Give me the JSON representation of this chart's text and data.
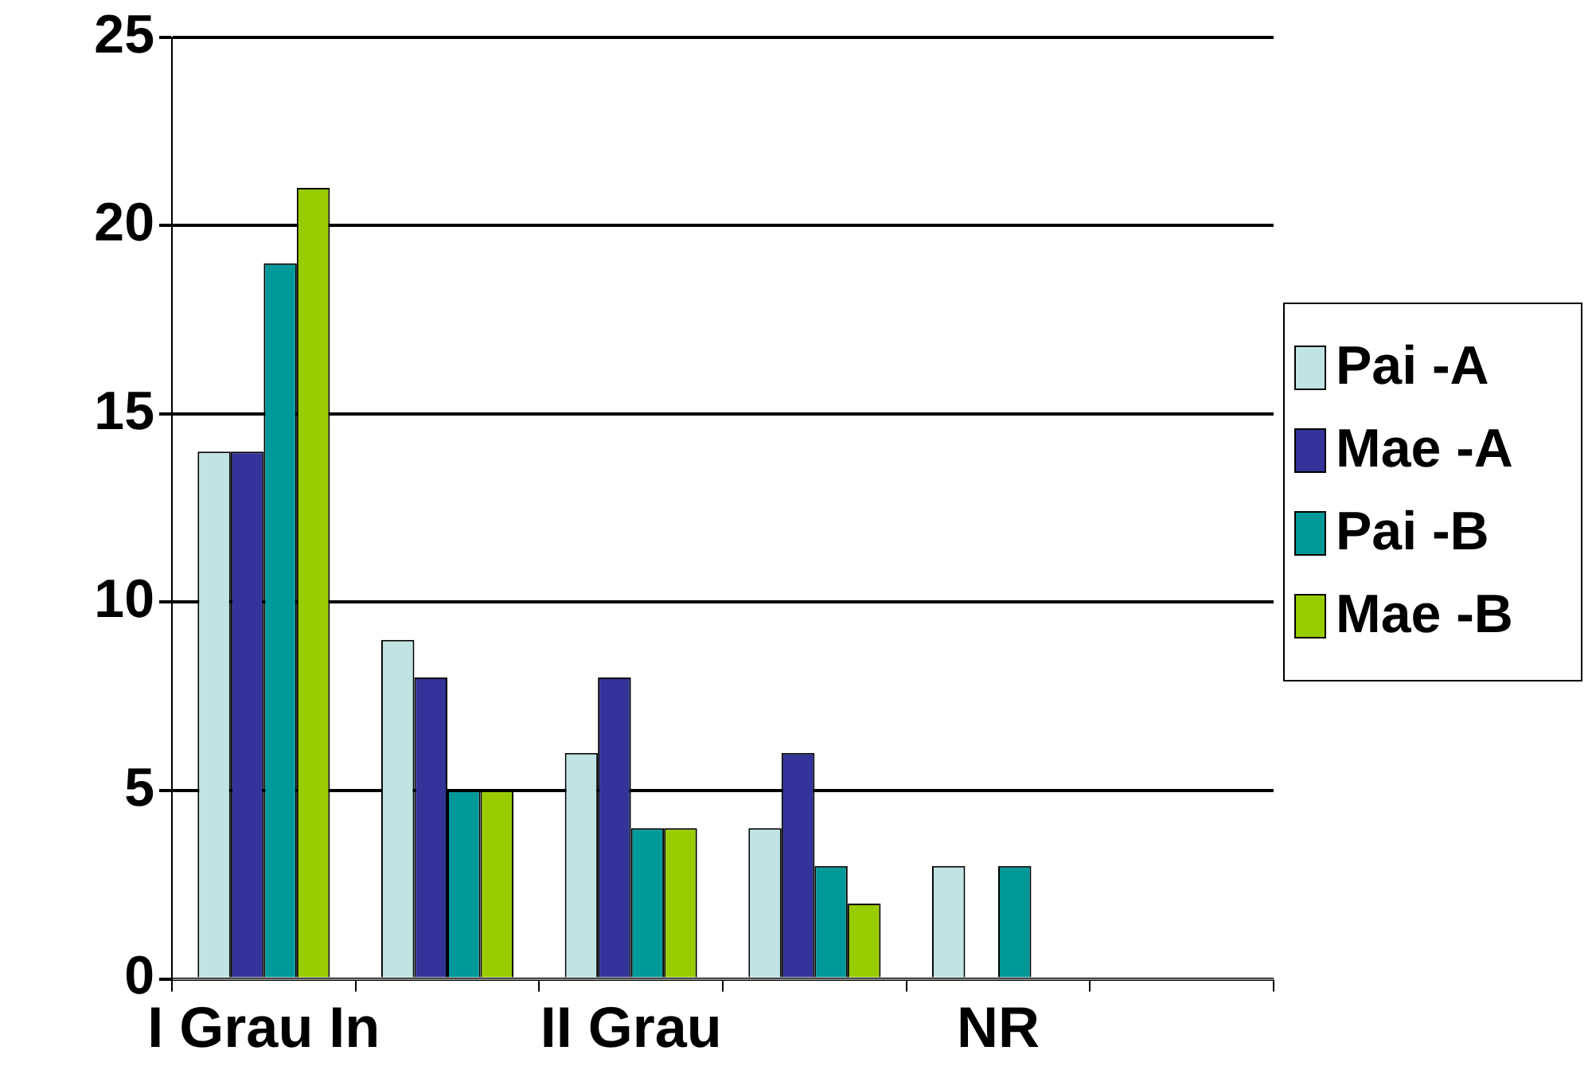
{
  "chart_data": {
    "type": "bar",
    "categories": [
      "I Grau In",
      null,
      "II Grau",
      null,
      "NR",
      null
    ],
    "series": [
      {
        "name": "Pai -A",
        "color": "#c0e4e4",
        "values": [
          14,
          9,
          6,
          4,
          3,
          null
        ]
      },
      {
        "name": "Mae -A",
        "color": "#333399",
        "values": [
          14,
          8,
          8,
          6,
          null,
          null
        ]
      },
      {
        "name": "Pai -B",
        "color": "#009999",
        "values": [
          19,
          5,
          4,
          3,
          3,
          null
        ]
      },
      {
        "name": "Mae -B",
        "color": "#99cc00",
        "values": [
          21,
          5,
          4,
          2,
          null,
          null
        ]
      }
    ],
    "ylim": [
      0,
      25
    ],
    "yticks": [
      0,
      5,
      10,
      15,
      20,
      25
    ],
    "grid": "y",
    "legend": "right"
  }
}
